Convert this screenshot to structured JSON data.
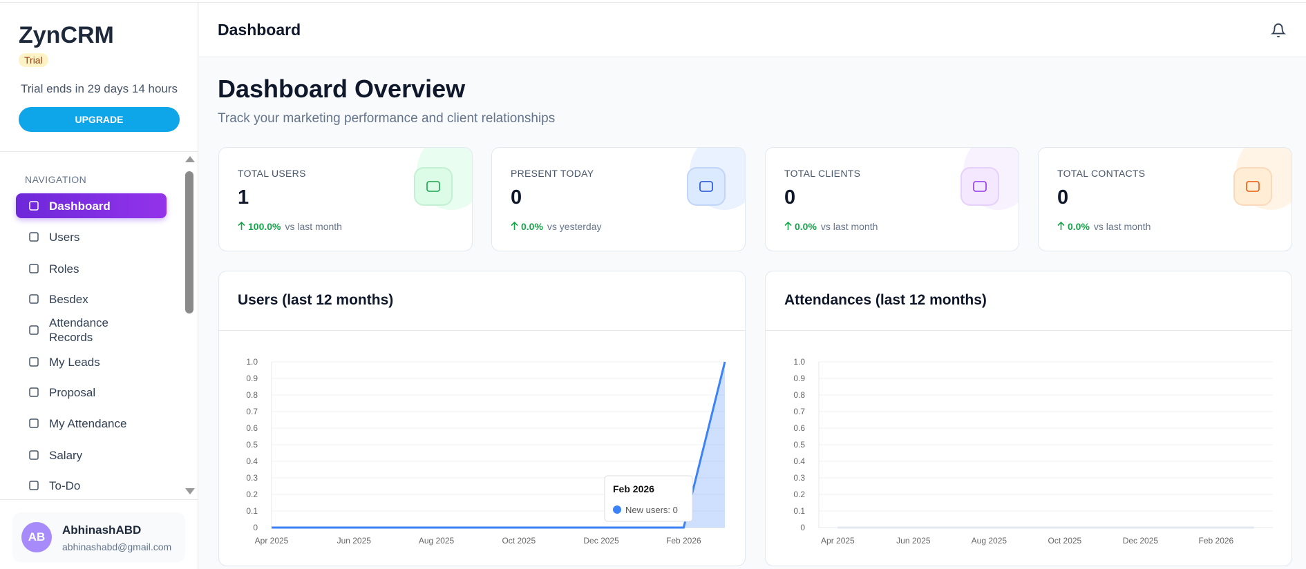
{
  "sidebar": {
    "brand": "ZynCRM",
    "badge": "Trial",
    "trial_text": "Trial ends in 29 days 14 hours",
    "upgrade": "UPGRADE",
    "nav_heading": "NAVIGATION",
    "nav": [
      "Dashboard",
      "Users",
      "Roles",
      "Besdex",
      "Attendance Records",
      "My Leads",
      "Proposal",
      "My Attendance",
      "Salary",
      "To-Do"
    ],
    "user": {
      "initials": "AB",
      "name": "AbhinashABD",
      "email": "abhinashabd@gmail.com"
    }
  },
  "header": {
    "title": "Dashboard"
  },
  "overview": {
    "title": "Dashboard Overview",
    "subtitle": "Track your marketing performance and client relationships"
  },
  "stats": [
    {
      "label": "TOTAL USERS",
      "value": 1,
      "change": "100.0%",
      "period": "vs last month"
    },
    {
      "label": "PRESENT TODAY",
      "value": 0,
      "change": "0.0%",
      "period": "vs yesterday"
    },
    {
      "label": "TOTAL CLIENTS",
      "value": 0,
      "change": "0.0%",
      "period": "vs last month"
    },
    {
      "label": "TOTAL CONTACTS",
      "value": 0,
      "change": "0.0%",
      "period": "vs last month"
    }
  ],
  "chart_data": [
    {
      "type": "line",
      "title": "Users (last 12 months)",
      "categories": [
        "Apr 2025",
        null,
        "Jun 2025",
        null,
        "Aug 2025",
        null,
        "Oct 2025",
        null,
        "Dec 2025",
        null,
        "Feb 2026",
        null
      ],
      "series": [
        {
          "name": "New users",
          "color": "#3b82f6",
          "values": [
            0,
            0,
            0,
            0,
            0,
            0,
            0,
            0,
            0,
            0,
            0,
            1
          ]
        }
      ],
      "ylim": [
        0,
        1
      ],
      "yticks": [
        0,
        0.1,
        0.2,
        0.3,
        0.4,
        0.5,
        0.6,
        0.7,
        0.8,
        0.9,
        {
          "value": 1,
          "label": "1.0"
        }
      ],
      "grid": true,
      "area": true,
      "tooltip": {
        "title": "Feb 2026",
        "label": "New users: 0"
      }
    },
    {
      "type": "line",
      "title": "Attendances (last 12 months)",
      "categories": [
        "Apr 2025",
        null,
        "Jun 2025",
        null,
        "Aug 2025",
        null,
        "Oct 2025",
        null,
        "Dec 2025",
        null,
        "Feb 2026",
        null
      ],
      "series": [
        {
          "color": "#e2e8f0",
          "values": [
            0,
            0,
            0,
            0,
            0,
            0,
            0,
            0,
            0,
            0,
            0,
            0
          ]
        }
      ],
      "ylim": [
        0,
        1
      ],
      "yticks": [
        0,
        0.1,
        0.2,
        0.3,
        0.4,
        0.5,
        0.6,
        0.7,
        0.8,
        0.9,
        {
          "value": 1,
          "label": "1.0"
        }
      ],
      "grid": true,
      "area": false
    }
  ]
}
